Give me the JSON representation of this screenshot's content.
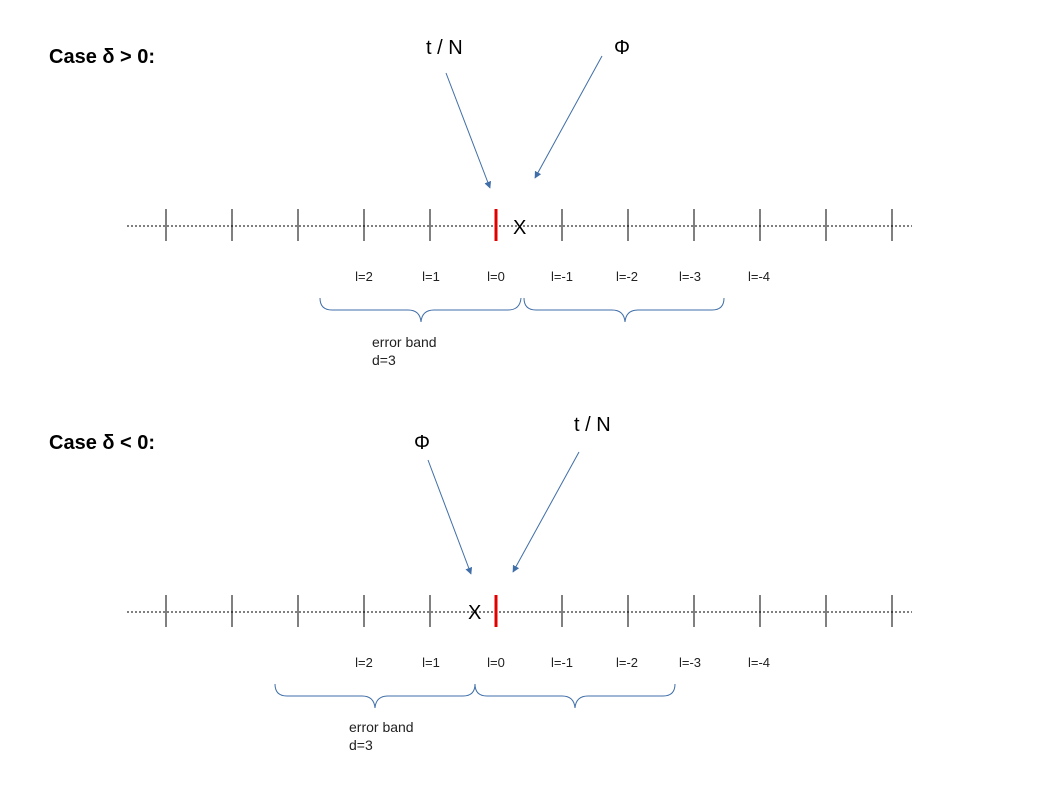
{
  "panels": [
    {
      "heading": "Case δ > 0:",
      "arrows": [
        {
          "label": "t / N"
        },
        {
          "label": "Φ"
        }
      ],
      "marker_label": "X",
      "tick_labels": [
        "l=2",
        "l=1",
        "l=0",
        "l=-1",
        "l=-2",
        "l=-3",
        "l=-4"
      ],
      "error_band": {
        "title": "error band",
        "value": "d=3"
      }
    },
    {
      "heading": "Case δ < 0:",
      "arrows": [
        {
          "label": "Φ"
        },
        {
          "label": "t / N"
        }
      ],
      "marker_label": "X",
      "tick_labels": [
        "l=2",
        "l=1",
        "l=0",
        "l=-1",
        "l=-2",
        "l=-3",
        "l=-4"
      ],
      "error_band": {
        "title": "error band",
        "value": "d=3"
      }
    }
  ],
  "colors": {
    "arrow": "#3f6ea8",
    "marker": "#e00000",
    "brace": "#3f6ea8",
    "axis": "#000000"
  }
}
